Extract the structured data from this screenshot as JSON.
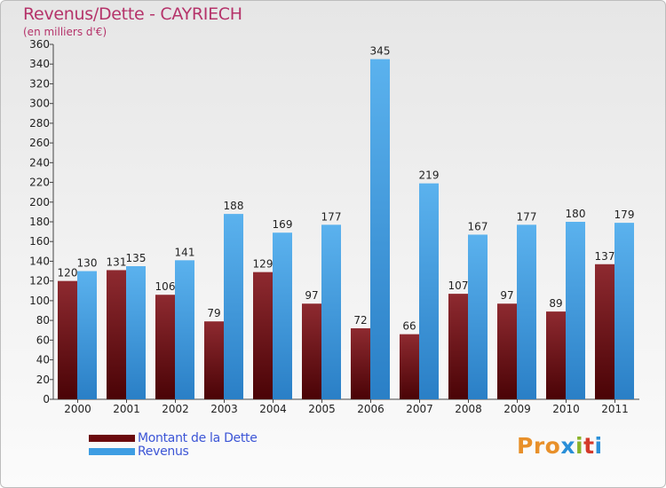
{
  "header": {
    "title": "Revenus/Dette - CAYRIECH",
    "subtitle": "(en milliers d'€)"
  },
  "colors": {
    "dette": "#6b0a0e",
    "revenus": "#3e9de3",
    "title": "#b5336a",
    "legend_text": "#3c55d6"
  },
  "legend": {
    "items": [
      {
        "label": "Montant de la Dette",
        "color": "#6b0a0e"
      },
      {
        "label": "Revenus",
        "color": "#3e9de3"
      }
    ]
  },
  "logo": {
    "text": "Proxiti",
    "letter_colors": [
      "#e8902a",
      "#e8902a",
      "#e8902a",
      "#2a8fd8",
      "#8ab32a",
      "#d43a2a",
      "#2a8fd8"
    ]
  },
  "chart_data": {
    "type": "bar",
    "title": "Revenus/Dette - CAYRIECH",
    "subtitle": "(en milliers d'€)",
    "categories": [
      "2000",
      "2001",
      "2002",
      "2003",
      "2004",
      "2005",
      "2006",
      "2007",
      "2008",
      "2009",
      "2010",
      "2011"
    ],
    "series": [
      {
        "name": "Montant de la Dette",
        "values": [
          120,
          131,
          106,
          79,
          129,
          97,
          72,
          66,
          107,
          97,
          89,
          137
        ]
      },
      {
        "name": "Revenus",
        "values": [
          130,
          135,
          141,
          188,
          169,
          177,
          345,
          219,
          167,
          177,
          180,
          179
        ]
      }
    ],
    "ylim": [
      0,
      360
    ],
    "ytick_step": 20,
    "grid": false,
    "legend_position": "bottom-left"
  }
}
